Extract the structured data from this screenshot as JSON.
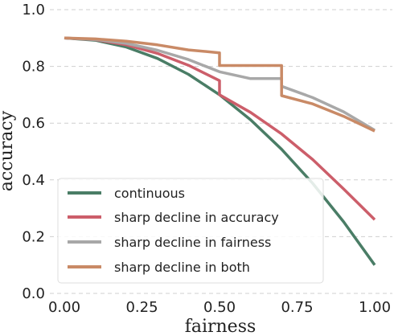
{
  "chart_data": {
    "type": "line",
    "title": "",
    "xlabel": "fairness",
    "ylabel": "accuracy",
    "xlim": [
      0.0,
      1.0
    ],
    "ylim": [
      0.0,
      1.0
    ],
    "xticks": [
      "0.00",
      "0.25",
      "0.50",
      "0.75",
      "1.00"
    ],
    "xtick_values": [
      0.0,
      0.25,
      0.5,
      0.75,
      1.0
    ],
    "yticks": [
      "0.0",
      "0.2",
      "0.4",
      "0.6",
      "0.8",
      "1.0"
    ],
    "ytick_values": [
      0.0,
      0.2,
      0.4,
      0.6,
      0.8,
      1.0
    ],
    "grid": "horizontal dashed",
    "legend_position": "bottom-left",
    "series": [
      {
        "name": "continuous",
        "color": "#4a7d66",
        "x": [
          0.0,
          0.1,
          0.2,
          0.3,
          0.4,
          0.5,
          0.6,
          0.7,
          0.8,
          0.9,
          1.0
        ],
        "y": [
          0.9,
          0.892,
          0.868,
          0.828,
          0.772,
          0.7,
          0.612,
          0.508,
          0.388,
          0.252,
          0.1
        ]
      },
      {
        "name": "sharp decline in accuracy",
        "color": "#cc5e6a",
        "x": [
          0.0,
          0.1,
          0.2,
          0.3,
          0.4,
          0.5,
          0.5,
          0.6,
          0.7,
          0.8,
          0.9,
          1.0
        ],
        "y": [
          0.9,
          0.894,
          0.876,
          0.846,
          0.804,
          0.75,
          0.7,
          0.638,
          0.562,
          0.472,
          0.368,
          0.26
        ]
      },
      {
        "name": "sharp decline in fairness",
        "color": "#a8a8a8",
        "x": [
          0.0,
          0.1,
          0.2,
          0.3,
          0.4,
          0.5,
          0.6,
          0.7,
          0.7,
          0.8,
          0.9,
          1.0
        ],
        "y": [
          0.9,
          0.895,
          0.881,
          0.857,
          0.824,
          0.781,
          0.757,
          0.757,
          0.73,
          0.69,
          0.64,
          0.575
        ]
      },
      {
        "name": "sharp decline in both",
        "color": "#c98a66",
        "x": [
          0.0,
          0.1,
          0.2,
          0.3,
          0.4,
          0.5,
          0.5,
          0.6,
          0.7,
          0.7,
          0.8,
          0.9,
          1.0
        ],
        "y": [
          0.9,
          0.897,
          0.889,
          0.876,
          0.858,
          0.848,
          0.803,
          0.803,
          0.803,
          0.697,
          0.668,
          0.624,
          0.572
        ]
      }
    ]
  }
}
